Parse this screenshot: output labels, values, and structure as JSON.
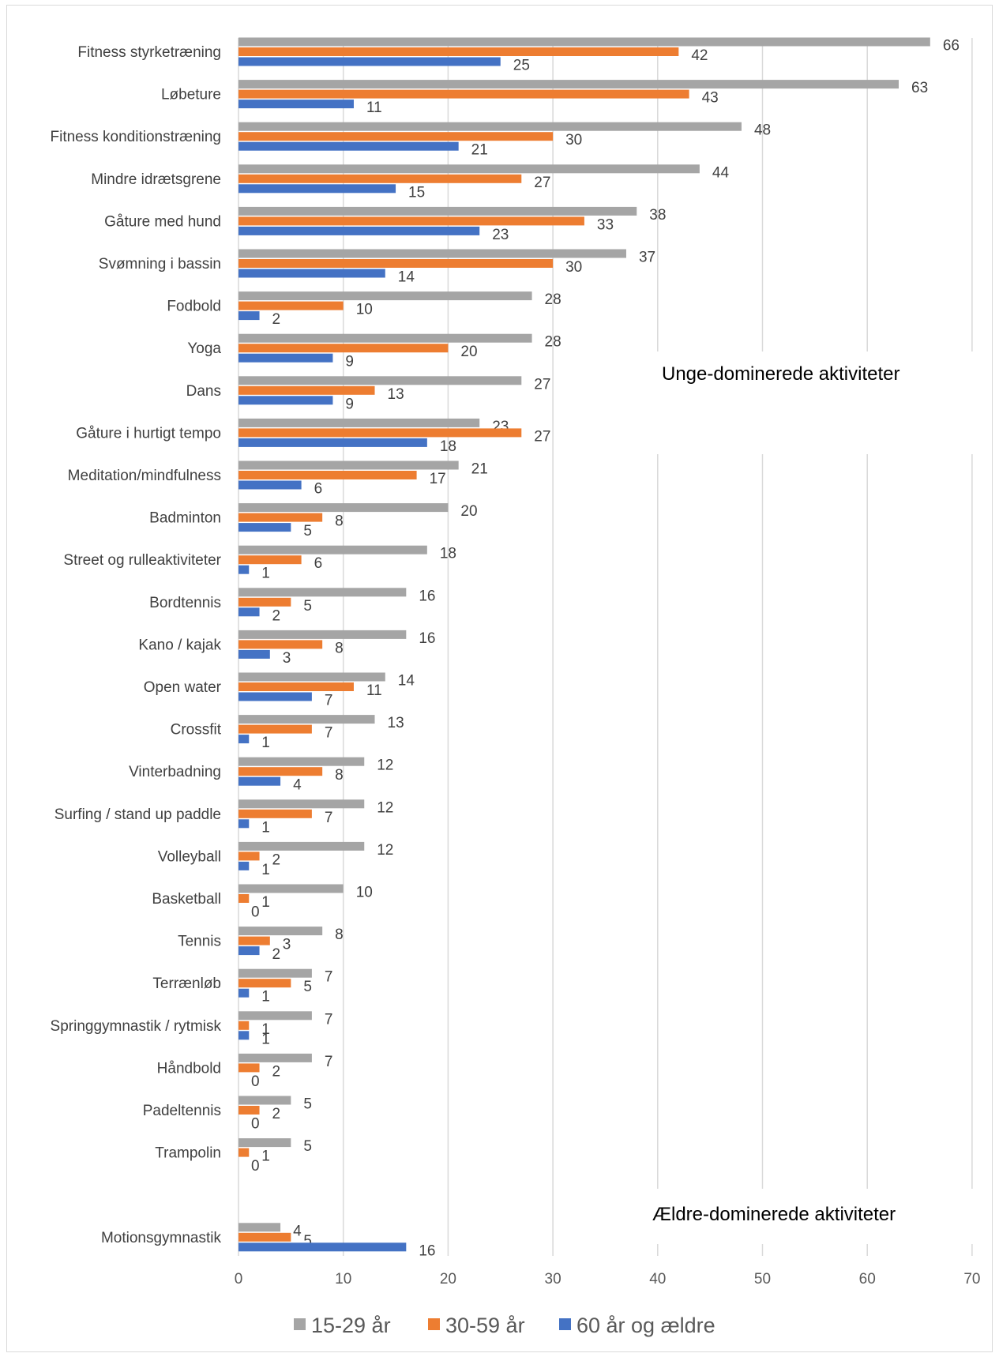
{
  "chart_data": {
    "type": "bar",
    "orientation": "horizontal",
    "categories": [
      "Fitness styrketræning",
      "Løbeture",
      "Fitness konditionstræning",
      "Mindre idrætsgrene",
      "Gåture med hund",
      "Svømning i bassin",
      "Fodbold",
      "Yoga",
      "Dans",
      "Gåture i hurtigt tempo",
      "Meditation/mindfulness",
      "Badminton",
      "Street og rulleaktiviteter",
      "Bordtennis",
      "Kano / kajak",
      "Open water",
      "Crossfit",
      "Vinterbadning",
      "Surfing / stand up paddle",
      "Volleyball",
      "Basketball",
      "Tennis",
      "Terrænløb",
      "Springgymnastik / rytmisk",
      "Håndbold",
      "Padeltennis",
      "Trampolin",
      "",
      "Motionsgymnastik"
    ],
    "series": [
      {
        "name": "15-29 år",
        "color": "#a5a5a5",
        "values": [
          66,
          63,
          48,
          44,
          38,
          37,
          28,
          28,
          27,
          23,
          21,
          20,
          18,
          16,
          16,
          14,
          13,
          12,
          12,
          12,
          10,
          8,
          7,
          7,
          7,
          5,
          5,
          null,
          4
        ]
      },
      {
        "name": "30-59 år",
        "color": "#ed7d31",
        "values": [
          42,
          43,
          30,
          27,
          33,
          30,
          10,
          20,
          13,
          27,
          17,
          8,
          6,
          5,
          8,
          11,
          7,
          8,
          7,
          2,
          1,
          3,
          5,
          1,
          2,
          2,
          1,
          null,
          5
        ]
      },
      {
        "name": "60 år og ældre",
        "color": "#4472c4",
        "values": [
          25,
          11,
          21,
          15,
          23,
          14,
          2,
          9,
          9,
          18,
          6,
          5,
          1,
          2,
          3,
          7,
          1,
          4,
          1,
          1,
          0,
          2,
          1,
          1,
          0,
          0,
          0,
          null,
          16
        ]
      }
    ],
    "xlim": [
      0,
      70
    ],
    "xticks": [
      "0",
      "10",
      "20",
      "30",
      "40",
      "50",
      "60",
      "70"
    ],
    "grid": "vertical",
    "legend": "bottom",
    "annotations": [
      {
        "text": "Unge-dominerede aktiviteter"
      },
      {
        "text": "Ældre-dominerede aktiviteter"
      }
    ]
  }
}
